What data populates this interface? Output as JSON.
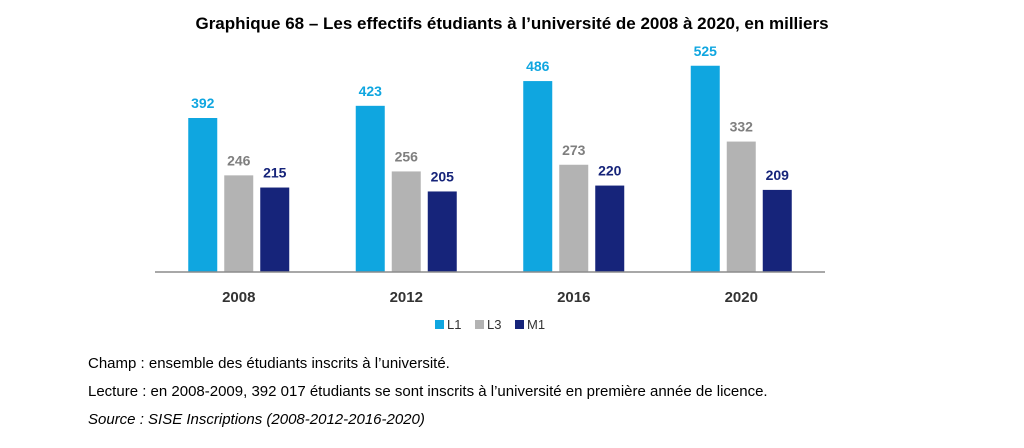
{
  "chart_data": {
    "type": "bar",
    "title": "Graphique 68 – Les effectifs étudiants à l’université de 2008 à 2020, en milliers",
    "categories": [
      "2008",
      "2012",
      "2016",
      "2020"
    ],
    "series": [
      {
        "name": "L1",
        "values": [
          392,
          423,
          486,
          525
        ],
        "color": "#0fa6e0",
        "label_color": "#0fa6e0"
      },
      {
        "name": "L3",
        "values": [
          246,
          256,
          273,
          332
        ],
        "color": "#b3b3b3",
        "label_color": "#7f7f7f"
      },
      {
        "name": "M1",
        "values": [
          215,
          205,
          220,
          209
        ],
        "color": "#16247a",
        "label_color": "#16247a"
      }
    ],
    "ylim": [
      0,
      560
    ],
    "grid": false,
    "legend": "bottom-center"
  },
  "notes": {
    "champ": "Champ : ensemble des étudiants inscrits à l’université.",
    "lecture": "Lecture : en 2008-2009, 392 017 étudiants se sont inscrits à l’université en première année de licence.",
    "source": "Source : SISE Inscriptions (2008-2012-2016-2020)"
  }
}
